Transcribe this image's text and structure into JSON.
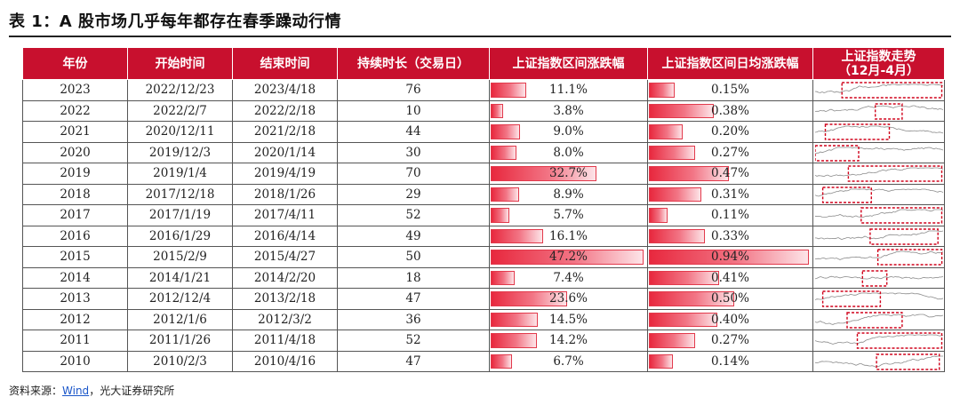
{
  "title": "表 1：A 股市场几乎每年都存在春季躁动行情",
  "table": {
    "headers": [
      "年份",
      "开始时间",
      "结束时间",
      "持续时长（交易日）",
      "上证指数区间涨跌幅",
      "上证指数区间日均涨跌幅",
      "上证指数走势",
      "（12月-4月）"
    ],
    "rows": [
      {
        "year": "2023",
        "start": "2022/12/23",
        "end": "2023/4/18",
        "days": "76",
        "range_pct": "11.1%",
        "range_val": 11.1,
        "daily_pct": "0.15%",
        "daily_val": 0.15,
        "hl": [
          0.21,
          0.99
        ]
      },
      {
        "year": "2022",
        "start": "2022/2/7",
        "end": "2022/2/18",
        "days": "10",
        "range_pct": "3.8%",
        "range_val": 3.8,
        "daily_pct": "0.38%",
        "daily_val": 0.38,
        "hl": [
          0.47,
          0.68
        ]
      },
      {
        "year": "2021",
        "start": "2020/12/11",
        "end": "2021/2/18",
        "days": "44",
        "range_pct": "9.0%",
        "range_val": 9.0,
        "daily_pct": "0.20%",
        "daily_val": 0.2,
        "hl": [
          0.08,
          0.58
        ]
      },
      {
        "year": "2020",
        "start": "2019/12/3",
        "end": "2020/1/14",
        "days": "30",
        "range_pct": "8.0%",
        "range_val": 8.0,
        "daily_pct": "0.27%",
        "daily_val": 0.27,
        "hl": [
          0.0,
          0.34
        ]
      },
      {
        "year": "2019",
        "start": "2019/1/4",
        "end": "2019/4/19",
        "days": "70",
        "range_pct": "32.7%",
        "range_val": 32.7,
        "daily_pct": "0.47%",
        "daily_val": 0.47,
        "hl": [
          0.26,
          0.99
        ]
      },
      {
        "year": "2018",
        "start": "2017/12/18",
        "end": "2018/1/26",
        "days": "29",
        "range_pct": "8.9%",
        "range_val": 8.9,
        "daily_pct": "0.31%",
        "daily_val": 0.31,
        "hl": [
          0.06,
          0.44
        ]
      },
      {
        "year": "2017",
        "start": "2017/1/19",
        "end": "2017/4/11",
        "days": "52",
        "range_pct": "5.7%",
        "range_val": 5.7,
        "daily_pct": "0.11%",
        "daily_val": 0.11,
        "hl": [
          0.36,
          0.99
        ]
      },
      {
        "year": "2016",
        "start": "2016/1/29",
        "end": "2016/4/14",
        "days": "49",
        "range_pct": "16.1%",
        "range_val": 16.1,
        "daily_pct": "0.33%",
        "daily_val": 0.33,
        "hl": [
          0.43,
          0.96
        ]
      },
      {
        "year": "2015",
        "start": "2015/2/9",
        "end": "2015/4/27",
        "days": "50",
        "range_pct": "47.2%",
        "range_val": 47.2,
        "daily_pct": "0.94%",
        "daily_val": 0.94,
        "hl": [
          0.49,
          0.99
        ]
      },
      {
        "year": "2014",
        "start": "2014/1/21",
        "end": "2014/2/20",
        "days": "18",
        "range_pct": "7.4%",
        "range_val": 7.4,
        "daily_pct": "0.41%",
        "daily_val": 0.41,
        "hl": [
          0.37,
          0.56
        ]
      },
      {
        "year": "2013",
        "start": "2012/12/4",
        "end": "2013/2/18",
        "days": "47",
        "range_pct": "23.6%",
        "range_val": 23.6,
        "daily_pct": "0.50%",
        "daily_val": 0.5,
        "hl": [
          0.06,
          0.51
        ]
      },
      {
        "year": "2012",
        "start": "2012/1/6",
        "end": "2012/3/2",
        "days": "36",
        "range_pct": "14.5%",
        "range_val": 14.5,
        "daily_pct": "0.40%",
        "daily_val": 0.4,
        "hl": [
          0.25,
          0.68
        ]
      },
      {
        "year": "2011",
        "start": "2011/1/26",
        "end": "2011/4/18",
        "days": "52",
        "range_pct": "14.2%",
        "range_val": 14.2,
        "daily_pct": "0.27%",
        "daily_val": 0.27,
        "hl": [
          0.33,
          0.99
        ]
      },
      {
        "year": "2010",
        "start": "2010/2/3",
        "end": "2010/4/16",
        "days": "47",
        "range_pct": "6.7%",
        "range_val": 6.7,
        "daily_pct": "0.14%",
        "daily_val": 0.14,
        "hl": [
          0.48,
          0.97
        ]
      }
    ]
  },
  "footer": {
    "prefix": "资料来源：",
    "source": "Wind",
    "suffix": "，光大证券研究所"
  },
  "colors": {
    "header_bg": "#c8102e",
    "bar": "#e8283e",
    "highlight_box": "#d0021b",
    "spark_line": "#8c8c8c"
  }
}
